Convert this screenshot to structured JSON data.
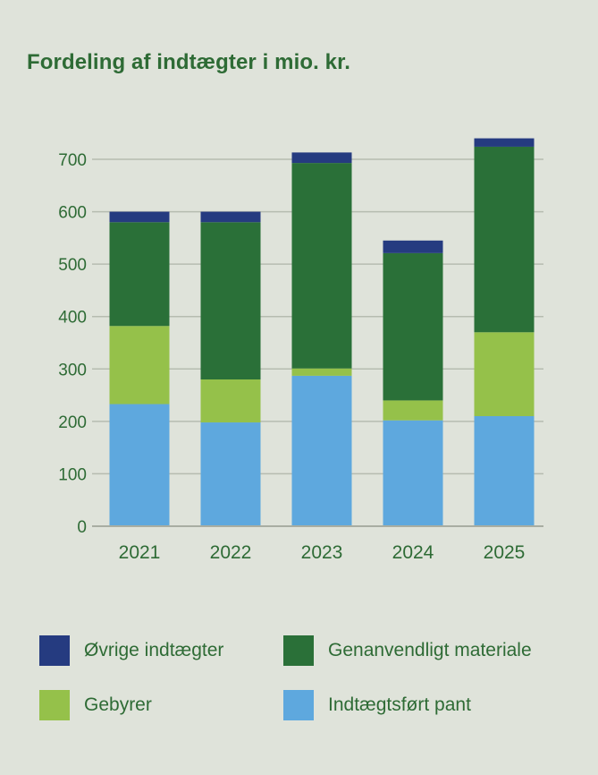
{
  "chart_data": {
    "type": "bar",
    "stacked": true,
    "title": "Fordeling af indtægter i mio. kr.",
    "categories": [
      "2021",
      "2022",
      "2023",
      "2024",
      "2025"
    ],
    "ylim": [
      0,
      750
    ],
    "yticks": [
      "0",
      "100",
      "200",
      "300",
      "400",
      "500",
      "600",
      "700"
    ],
    "grid": true,
    "xlabel": "",
    "ylabel": "",
    "legend_position": "bottom",
    "series": [
      {
        "name": "Indtægtsført pant",
        "color": "#5ea8de",
        "values": [
          233,
          198,
          287,
          202,
          210
        ]
      },
      {
        "name": "Gebyrer",
        "color": "#95c14a",
        "values": [
          149,
          82,
          14,
          38,
          160
        ]
      },
      {
        "name": "Genanvendligt materiale",
        "color": "#2a7038",
        "values": [
          198,
          300,
          392,
          281,
          354
        ]
      },
      {
        "name": "Øvrige indtægter",
        "color": "#253b80",
        "values": [
          20,
          20,
          20,
          24,
          16
        ]
      }
    ]
  },
  "legend": {
    "items": [
      {
        "label": "Øvrige indtægter",
        "color": "#253b80"
      },
      {
        "label": "Genanvendligt materiale",
        "color": "#2a7038"
      },
      {
        "label": "Gebyrer",
        "color": "#95c14a"
      },
      {
        "label": "Indtægtsført pant",
        "color": "#5ea8de"
      }
    ]
  }
}
